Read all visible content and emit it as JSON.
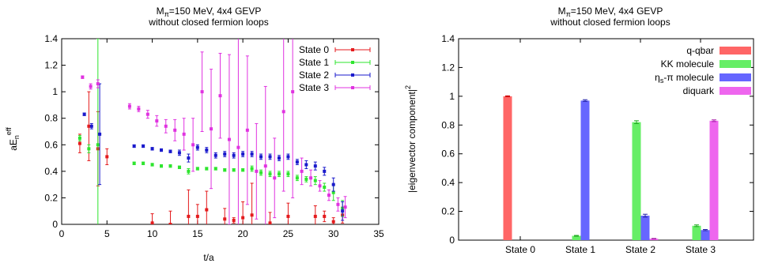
{
  "colors": {
    "state0": "#e41a1c",
    "state1": "#2ee52e",
    "state2": "#1a1acc",
    "state3": "#e033e0",
    "bar_qqbar": "#ff6666",
    "bar_kk": "#66ee66",
    "bar_eta": "#6666ff",
    "bar_diquark": "#ee66ee"
  },
  "chart_data": [
    {
      "type": "scatter",
      "title_line1": "M",
      "title_sub": "π",
      "title_rest": "=150 MeV, 4x4 GEVP",
      "title_line2": "without closed fermion loops",
      "xlabel": "t/a",
      "ylabel_main": "aE",
      "ylabel_sub": "n",
      "ylabel_sup": "eff",
      "xlim": [
        0,
        35
      ],
      "ylim": [
        0,
        1.4
      ],
      "xticks": [
        "0",
        "5",
        "10",
        "15",
        "20",
        "25",
        "30",
        "35"
      ],
      "yticks": [
        "0",
        "0.2",
        "0.4",
        "0.6",
        "0.8",
        "1",
        "1.2",
        "1.4"
      ],
      "legend_position": "top-right",
      "series": [
        {
          "name": "State 0",
          "points": [
            {
              "x": 2,
              "y": 0.61,
              "err": 0.07
            },
            {
              "x": 3,
              "y": 0.74,
              "err": 0.26
            },
            {
              "x": 4,
              "y": 0.57,
              "err": 0.28
            },
            {
              "x": 5,
              "y": 0.51,
              "err": 0.06
            },
            {
              "x": 10,
              "y": 0.01,
              "err": 0.07
            },
            {
              "x": 12,
              "y": 0.0,
              "err": 0.1
            },
            {
              "x": 14,
              "y": 0.06,
              "err": 0.2
            },
            {
              "x": 15,
              "y": 0.06,
              "err": 0.09
            },
            {
              "x": 16,
              "y": 0.11,
              "err": 0.14
            },
            {
              "x": 18,
              "y": 0.04,
              "err": 0.08
            },
            {
              "x": 19,
              "y": 0.03,
              "err": 0.02
            },
            {
              "x": 20,
              "y": 0.05,
              "err": 0.12
            },
            {
              "x": 21,
              "y": 0.07,
              "err": 0.24
            },
            {
              "x": 23,
              "y": 0.01,
              "err": 0.08
            },
            {
              "x": 25,
              "y": 0.06,
              "err": 0.1
            },
            {
              "x": 28,
              "y": 0.06,
              "err": 0.08
            },
            {
              "x": 29,
              "y": 0.06,
              "err": 0.04
            },
            {
              "x": 30,
              "y": 0.02,
              "err": 0.03
            },
            {
              "x": 31,
              "y": 0.07,
              "err": 0.06
            }
          ]
        },
        {
          "name": "State 1",
          "points": [
            {
              "x": 2,
              "y": 0.65,
              "err": 0.02
            },
            {
              "x": 3,
              "y": 0.57,
              "err": 0.03
            },
            {
              "x": 4,
              "y": 0.6,
              "err": 0.8
            },
            {
              "x": 8,
              "y": 0.46,
              "err": 0.01
            },
            {
              "x": 9,
              "y": 0.46,
              "err": 0.01
            },
            {
              "x": 10,
              "y": 0.45,
              "err": 0.01
            },
            {
              "x": 11,
              "y": 0.44,
              "err": 0.01
            },
            {
              "x": 12,
              "y": 0.44,
              "err": 0.01
            },
            {
              "x": 13,
              "y": 0.43,
              "err": 0.01
            },
            {
              "x": 14,
              "y": 0.4,
              "err": 0.02
            },
            {
              "x": 15,
              "y": 0.42,
              "err": 0.01
            },
            {
              "x": 16,
              "y": 0.42,
              "err": 0.01
            },
            {
              "x": 17,
              "y": 0.42,
              "err": 0.01
            },
            {
              "x": 18,
              "y": 0.41,
              "err": 0.01
            },
            {
              "x": 19,
              "y": 0.41,
              "err": 0.01
            },
            {
              "x": 20,
              "y": 0.41,
              "err": 0.01
            },
            {
              "x": 21,
              "y": 0.42,
              "err": 0.02
            },
            {
              "x": 22,
              "y": 0.39,
              "err": 0.02
            },
            {
              "x": 23,
              "y": 0.38,
              "err": 0.02
            },
            {
              "x": 24,
              "y": 0.38,
              "err": 0.02
            },
            {
              "x": 25,
              "y": 0.38,
              "err": 0.02
            },
            {
              "x": 26,
              "y": 0.35,
              "err": 0.02
            },
            {
              "x": 27,
              "y": 0.34,
              "err": 0.02
            },
            {
              "x": 28,
              "y": 0.33,
              "err": 0.03
            },
            {
              "x": 29,
              "y": 0.28,
              "err": 0.03
            },
            {
              "x": 30,
              "y": 0.24,
              "err": 0.06
            },
            {
              "x": 31,
              "y": 0.12,
              "err": 0.06
            }
          ]
        },
        {
          "name": "State 2",
          "points": [
            {
              "x": 2.5,
              "y": 0.83,
              "err": 0.01
            },
            {
              "x": 3.3,
              "y": 0.74,
              "err": 0.02
            },
            {
              "x": 4.2,
              "y": 0.68,
              "err": 0.38
            },
            {
              "x": 8,
              "y": 0.59,
              "err": 0.01
            },
            {
              "x": 9,
              "y": 0.59,
              "err": 0.01
            },
            {
              "x": 10,
              "y": 0.57,
              "err": 0.01
            },
            {
              "x": 11,
              "y": 0.56,
              "err": 0.01
            },
            {
              "x": 12,
              "y": 0.55,
              "err": 0.01
            },
            {
              "x": 13,
              "y": 0.54,
              "err": 0.02
            },
            {
              "x": 14,
              "y": 0.5,
              "err": 0.03
            },
            {
              "x": 15,
              "y": 0.58,
              "err": 0.02
            },
            {
              "x": 16,
              "y": 0.56,
              "err": 0.02
            },
            {
              "x": 17,
              "y": 0.52,
              "err": 0.02
            },
            {
              "x": 18,
              "y": 0.53,
              "err": 0.02
            },
            {
              "x": 19,
              "y": 0.52,
              "err": 0.02
            },
            {
              "x": 20,
              "y": 0.53,
              "err": 0.02
            },
            {
              "x": 21,
              "y": 0.53,
              "err": 0.02
            },
            {
              "x": 22,
              "y": 0.51,
              "err": 0.02
            },
            {
              "x": 23,
              "y": 0.51,
              "err": 0.02
            },
            {
              "x": 24,
              "y": 0.5,
              "err": 0.02
            },
            {
              "x": 25,
              "y": 0.51,
              "err": 0.02
            },
            {
              "x": 26,
              "y": 0.47,
              "err": 0.02
            },
            {
              "x": 27,
              "y": 0.45,
              "err": 0.03
            },
            {
              "x": 28,
              "y": 0.44,
              "err": 0.03
            },
            {
              "x": 29,
              "y": 0.4,
              "err": 0.03
            },
            {
              "x": 30,
              "y": 0.3,
              "err": 0.05
            },
            {
              "x": 31,
              "y": 0.1,
              "err": 0.07
            }
          ]
        },
        {
          "name": "State 3",
          "points": [
            {
              "x": 2.3,
              "y": 1.11,
              "err": 0.01
            },
            {
              "x": 3.2,
              "y": 1.04,
              "err": 0.02
            },
            {
              "x": 4,
              "y": 1.06,
              "err": 0.03
            },
            {
              "x": 7.5,
              "y": 0.89,
              "err": 0.02
            },
            {
              "x": 8.5,
              "y": 0.87,
              "err": 0.02
            },
            {
              "x": 9.5,
              "y": 0.83,
              "err": 0.03
            },
            {
              "x": 10.5,
              "y": 0.78,
              "err": 0.04
            },
            {
              "x": 11.5,
              "y": 0.74,
              "err": 0.05
            },
            {
              "x": 12.5,
              "y": 0.71,
              "err": 0.08
            },
            {
              "x": 13.5,
              "y": 0.68,
              "err": 0.12
            },
            {
              "x": 14.5,
              "y": 0.6,
              "err": 0.2
            },
            {
              "x": 15.5,
              "y": 1.0,
              "err": 0.3
            },
            {
              "x": 16.5,
              "y": 0.72,
              "err": 0.45
            },
            {
              "x": 17.5,
              "y": 0.97,
              "err": 0.32
            },
            {
              "x": 18.5,
              "y": 0.64,
              "err": 0.64
            },
            {
              "x": 19.5,
              "y": 0.58,
              "err": 0.9
            },
            {
              "x": 20.5,
              "y": 0.71,
              "err": 0.56
            },
            {
              "x": 21.5,
              "y": 0.4,
              "err": 0.36
            },
            {
              "x": 22.5,
              "y": 0.44,
              "err": 0.6
            },
            {
              "x": 23.5,
              "y": 0.35,
              "err": 0.3
            },
            {
              "x": 24.5,
              "y": 0.85,
              "err": 0.6
            },
            {
              "x": 25.5,
              "y": 1.0,
              "err": 0.8
            },
            {
              "x": 26.5,
              "y": 0.4,
              "err": 0.1
            },
            {
              "x": 27.5,
              "y": 0.35,
              "err": 0.06
            },
            {
              "x": 28.5,
              "y": 0.29,
              "err": 0.04
            },
            {
              "x": 29.5,
              "y": 0.22,
              "err": 0.04
            },
            {
              "x": 30.5,
              "y": 0.15,
              "err": 0.05
            },
            {
              "x": 31.3,
              "y": 0.13,
              "err": 0.08
            }
          ]
        }
      ]
    },
    {
      "type": "bar",
      "title_line1": "M",
      "title_sub": "π",
      "title_rest": "=150 MeV, 4x4 GEVP",
      "title_line2": "without closed fermion loops",
      "ylabel": "|eigenvector component|",
      "ylabel_sup": "2",
      "ylim": [
        0,
        1.4
      ],
      "yticks": [
        "0",
        "0.2",
        "0.4",
        "0.6",
        "0.8",
        "1",
        "1.2",
        "1.4"
      ],
      "categories": [
        "State 0",
        "State 1",
        "State 2",
        "State 3"
      ],
      "legend_position": "top-right",
      "series": [
        {
          "name": "q-qbar",
          "values": [
            1.0,
            0.0,
            0.0,
            0.0
          ],
          "errors": [
            0.003,
            0.0,
            0.0,
            0.0
          ]
        },
        {
          "name": "KK molecule",
          "values": [
            0.0,
            0.03,
            0.82,
            0.1
          ],
          "errors": [
            0.0,
            0.003,
            0.01,
            0.006
          ]
        },
        {
          "name_main": "η",
          "name_sub": "s",
          "name_rest": "-π molecule",
          "values": [
            0.0,
            0.97,
            0.17,
            0.07
          ],
          "errors": [
            0.0,
            0.006,
            0.01,
            0.004
          ]
        },
        {
          "name": "diquark",
          "values": [
            0.0,
            0.0,
            0.01,
            0.83
          ],
          "errors": [
            0.0,
            0.0,
            0.002,
            0.006
          ]
        }
      ]
    }
  ]
}
